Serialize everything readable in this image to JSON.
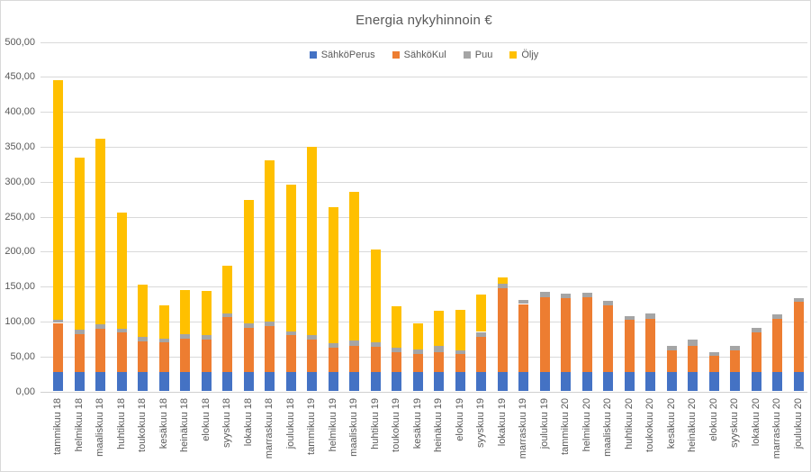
{
  "chart_data": {
    "type": "bar",
    "stacked": true,
    "title": "Energia nykyhinnoin €",
    "xlabel": "",
    "ylabel": "",
    "ylim": [
      0,
      500
    ],
    "ytick_step": 50,
    "ytick_labels": [
      "0,00",
      "50,00",
      "100,00",
      "150,00",
      "200,00",
      "250,00",
      "300,00",
      "350,00",
      "400,00",
      "450,00",
      "500,00"
    ],
    "grid": true,
    "legend_position": "top",
    "text_color": "#595959",
    "grid_color": "#d9d9d9",
    "categories": [
      "tammikuu 18",
      "helmikuu 18",
      "maaliskuu 18",
      "huhtikuu 18",
      "toukokuu 18",
      "kesäkuu 18",
      "heinäkuu 18",
      "elokuu 18",
      "syyskuu 18",
      "lokakuu 18",
      "marraskuu 18",
      "joulukuu 18",
      "tammikuu 19",
      "helmikuu 19",
      "maaliskuu 19",
      "huhtikuu 19",
      "toukokuu 19",
      "kesäkuu 19",
      "heinäkuu 19",
      "elokuu 19",
      "syyskuu 19",
      "lokakuu 19",
      "marraskuu 19",
      "joulukuu 19",
      "tammikuu 20",
      "helmikuu 20",
      "maaliskuu 20",
      "huhtikuu 20",
      "toukokuu 20",
      "kesäkuu 20",
      "heinäkuu 20",
      "elokuu 20",
      "syyskuu 20",
      "lokakuu 20",
      "marraskuu 20",
      "joulukuu 20"
    ],
    "series": [
      {
        "name": "SähköPerus",
        "color": "#4472C4",
        "values": [
          28,
          28,
          28,
          28,
          28,
          28,
          28,
          28,
          28,
          28,
          28,
          28,
          28,
          28,
          28,
          28,
          28,
          28,
          28,
          28,
          28,
          28,
          28,
          28,
          28,
          28,
          28,
          28,
          28,
          28,
          28,
          28,
          28,
          28,
          28,
          28
        ]
      },
      {
        "name": "SähköKul",
        "color": "#ED7D31",
        "values": [
          70,
          54,
          62,
          56,
          44,
          42,
          48,
          46,
          78,
          63,
          66,
          52,
          46,
          34,
          37,
          36,
          28,
          26,
          28,
          25,
          50,
          119,
          97,
          107,
          106,
          107,
          95,
          74,
          76,
          31,
          37,
          23,
          31,
          57,
          76,
          100
        ]
      },
      {
        "name": "Puu",
        "color": "#A5A5A5",
        "values": [
          5,
          6,
          6,
          6,
          6,
          5,
          6,
          6,
          6,
          6,
          6,
          6,
          6,
          7,
          8,
          6,
          6,
          6,
          9,
          6,
          7,
          7,
          6,
          7,
          6,
          6,
          7,
          6,
          8,
          6,
          9,
          5,
          6,
          6,
          6,
          5
        ]
      },
      {
        "name": "Öljy",
        "color": "#FFC000",
        "values": [
          342,
          246,
          265,
          166,
          75,
          48,
          63,
          64,
          68,
          177,
          230,
          210,
          270,
          195,
          213,
          133,
          60,
          38,
          50,
          58,
          53,
          9,
          0,
          0,
          0,
          0,
          0,
          0,
          0,
          0,
          0,
          0,
          0,
          0,
          0,
          0
        ]
      }
    ]
  }
}
